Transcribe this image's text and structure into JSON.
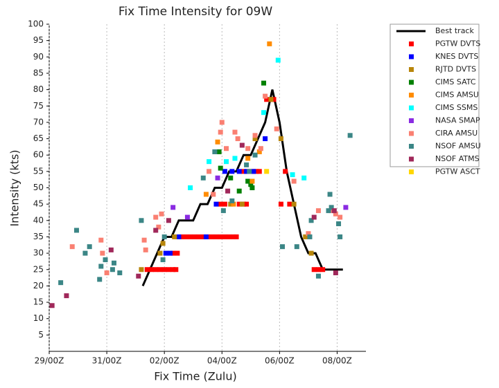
{
  "chart_data": {
    "type": "scatter",
    "title": "Fix Time Intensity for 09W",
    "x_label": "Fix Time (Zulu)",
    "y_label": "Intensity (kts)",
    "xlim": [
      0,
      11
    ],
    "ylim": [
      0,
      100
    ],
    "xticks": [
      {
        "value": 0,
        "label": "29/00Z"
      },
      {
        "value": 2,
        "label": "31/00Z"
      },
      {
        "value": 4,
        "label": "02/00Z"
      },
      {
        "value": 6,
        "label": "04/00Z"
      },
      {
        "value": 8,
        "label": "06/00Z"
      },
      {
        "value": 10,
        "label": "08/00Z"
      }
    ],
    "yticks": [
      5,
      10,
      15,
      20,
      25,
      30,
      35,
      40,
      45,
      50,
      55,
      60,
      65,
      70,
      75,
      80,
      85,
      90,
      95,
      100
    ],
    "grid": "x",
    "legend": "right",
    "series": [
      {
        "name": "Best track",
        "style": "line",
        "color": "#000000",
        "x": [
          3.25,
          3.5,
          3.75,
          4,
          4.25,
          4.5,
          4.75,
          5,
          5.25,
          5.5,
          5.75,
          6,
          6.25,
          6.5,
          6.75,
          7,
          7.25,
          7.5,
          7.75,
          8,
          8.25,
          8.5,
          8.75,
          9,
          9.25,
          9.5,
          9.75,
          10,
          10.2
        ],
        "values": [
          20,
          25,
          30,
          35,
          35,
          40,
          40,
          40,
          45,
          45,
          50,
          50,
          55,
          55,
          60,
          60,
          65,
          70,
          80,
          70,
          55,
          45,
          35,
          30,
          30,
          25,
          25,
          25,
          25
        ]
      },
      {
        "name": "PGTW DVTS",
        "style": "marker",
        "color": "#ff0000",
        "x": [
          3.4,
          3.55,
          3.7,
          3.85,
          4.0,
          4.15,
          4.3,
          4.4,
          4.3,
          4.45,
          4.6,
          4.75,
          4.9,
          5.05,
          5.2,
          5.35,
          5.5,
          5.65,
          5.8,
          5.95,
          6.1,
          6.25,
          6.4,
          6.5,
          5.95,
          6.1,
          6.6,
          6.75,
          6.85,
          6.75,
          6.9,
          7.05,
          7.2,
          7.3,
          7.55,
          7.7,
          7.8,
          8.2,
          8.05,
          8.35,
          9.2,
          9.35,
          9.5
        ],
        "values": [
          25,
          25,
          25,
          25,
          25,
          25,
          25,
          25,
          30,
          30,
          35,
          35,
          35,
          35,
          35,
          35,
          35,
          35,
          35,
          35,
          35,
          35,
          35,
          35,
          45,
          45,
          45,
          45,
          45,
          55,
          55,
          55,
          55,
          55,
          77,
          77,
          77,
          55,
          45,
          45,
          25,
          25,
          25
        ]
      },
      {
        "name": "KNES DVTS",
        "style": "marker",
        "color": "#0000ff",
        "x": [
          4.05,
          4.2,
          4.5,
          5.45,
          5.8,
          6.1,
          6.35,
          6.6,
          6.85,
          7.1,
          7.5
        ],
        "values": [
          30,
          30,
          35,
          35,
          45,
          55,
          55,
          55,
          55,
          55,
          65
        ]
      },
      {
        "name": "RJTD DVTS",
        "style": "marker",
        "color": "#b8860b",
        "x": [
          3.2,
          3.85,
          3.95,
          4.35,
          6.3,
          6.7,
          7.15,
          7.7,
          8.05,
          8.5,
          8.9,
          9.1
        ],
        "values": [
          25,
          30,
          33,
          35,
          45,
          45,
          65,
          77,
          65,
          45,
          35,
          30
        ]
      },
      {
        "name": "CIMS SATC",
        "style": "marker",
        "color": "#008000",
        "x": [
          5.9,
          5.95,
          6.3,
          6.6,
          6.9,
          7.0,
          7.05,
          7.45
        ],
        "values": [
          61,
          56,
          53,
          49,
          52,
          51,
          50,
          82
        ]
      },
      {
        "name": "CIMS AMSU",
        "style": "marker",
        "color": "#ff8c00",
        "x": [
          5.45,
          5.85,
          6.4,
          6.9,
          7.05,
          7.3,
          7.65
        ],
        "values": [
          48,
          64,
          45,
          59,
          52,
          61,
          94
        ]
      },
      {
        "name": "CIMS SSMS",
        "style": "marker",
        "color": "#00ffff",
        "x": [
          4.9,
          5.55,
          6.15,
          6.45,
          7.45,
          7.95,
          8.45,
          8.85
        ],
        "values": [
          50,
          58,
          58,
          59,
          73,
          89,
          54,
          53
        ]
      },
      {
        "name": "NASA SMAP",
        "style": "marker",
        "color": "#8a2be2",
        "x": [
          4.3,
          4.8,
          5.85,
          10.3
        ],
        "values": [
          44,
          41,
          53,
          44
        ]
      },
      {
        "name": "CIRA AMSU",
        "style": "marker",
        "color": "#fa8072",
        "x": [
          0.8,
          1.8,
          1.85,
          2.0,
          3.3,
          3.35,
          3.7,
          3.8,
          3.9,
          5.55,
          5.7,
          5.95,
          6.0,
          6.15,
          6.45,
          6.55,
          6.9,
          7.15,
          7.35,
          7.5,
          7.9,
          8.5,
          9.0,
          9.35,
          9.8,
          9.95,
          10.1
        ],
        "values": [
          32,
          34,
          30,
          24,
          34,
          31,
          41,
          38,
          42,
          55,
          48,
          67,
          70,
          62,
          67,
          65,
          62,
          66,
          62,
          78,
          68,
          52,
          36,
          43,
          43,
          42,
          41
        ]
      },
      {
        "name": "NSOF AMSU",
        "style": "marker",
        "color": "#3b8686",
        "x": [
          0.4,
          0.95,
          1.25,
          1.4,
          1.75,
          1.8,
          1.95,
          2.2,
          2.25,
          2.45,
          3.2,
          3.95,
          4.0,
          5.35,
          5.75,
          6.05,
          6.35,
          6.85,
          6.95,
          7.15,
          8.1,
          8.6,
          9.05,
          9.1,
          9.35,
          9.7,
          9.75,
          9.8,
          10.05,
          10.1,
          10.45
        ],
        "values": [
          21,
          37,
          30,
          32,
          22,
          26,
          28,
          25,
          27,
          24,
          40,
          28,
          35,
          53,
          61,
          43,
          46,
          57,
          55,
          60,
          32,
          32,
          35,
          40,
          23,
          43,
          48,
          44,
          39,
          35,
          66
        ]
      },
      {
        "name": "NSOF ATMS",
        "style": "marker",
        "color": "#a0285a",
        "x": [
          0.1,
          0.6,
          2.15,
          3.1,
          3.7,
          4.15,
          6.2,
          6.7,
          9.2,
          9.9,
          9.95
        ],
        "values": [
          14,
          17,
          31,
          23,
          37,
          40,
          49,
          63,
          41,
          43,
          24
        ]
      },
      {
        "name": "PGTW ASCT",
        "style": "marker",
        "color": "#ffd700",
        "x": [
          7.55
        ],
        "values": [
          55
        ]
      }
    ]
  }
}
